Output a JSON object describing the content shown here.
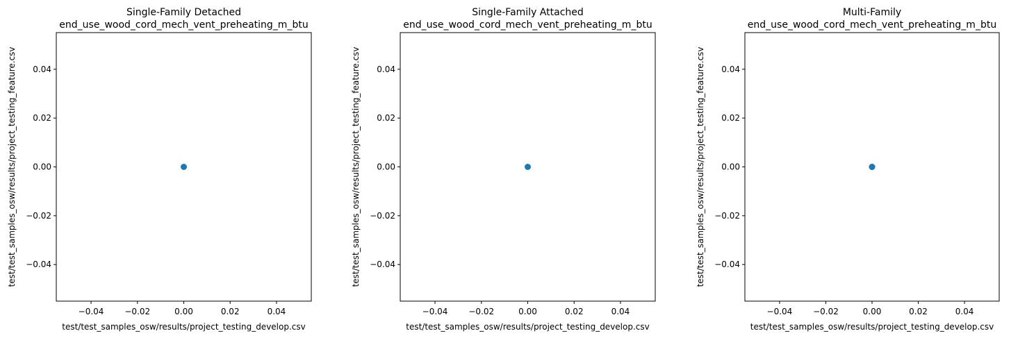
{
  "chart_data": [
    {
      "type": "scatter",
      "title_line1": "Single-Family Detached",
      "title_line2": "end_use_wood_cord_mech_vent_preheating_m_btu",
      "xlabel": "test/test_samples_osw/results/project_testing_develop.csv",
      "ylabel": "test/test_samples_osw/results/project_testing_feature.csv",
      "xlim": [
        -0.055,
        0.055
      ],
      "ylim": [
        -0.055,
        0.055
      ],
      "xticks": [
        -0.04,
        -0.02,
        0.0,
        0.02,
        0.04
      ],
      "yticks": [
        -0.04,
        -0.02,
        0.0,
        0.02,
        0.04
      ],
      "xtick_labels": [
        "−0.04",
        "−0.02",
        "0.00",
        "0.02",
        "0.04"
      ],
      "ytick_labels": [
        "−0.04",
        "−0.02",
        "0.00",
        "0.02",
        "0.04"
      ],
      "points": [
        {
          "x": 0.0,
          "y": 0.0
        }
      ],
      "color": "#1f77b4",
      "grid": false
    },
    {
      "type": "scatter",
      "title_line1": "Single-Family Attached",
      "title_line2": "end_use_wood_cord_mech_vent_preheating_m_btu",
      "xlabel": "test/test_samples_osw/results/project_testing_develop.csv",
      "ylabel": "test/test_samples_osw/results/project_testing_feature.csv",
      "xlim": [
        -0.055,
        0.055
      ],
      "ylim": [
        -0.055,
        0.055
      ],
      "xticks": [
        -0.04,
        -0.02,
        0.0,
        0.02,
        0.04
      ],
      "yticks": [
        -0.04,
        -0.02,
        0.0,
        0.02,
        0.04
      ],
      "xtick_labels": [
        "−0.04",
        "−0.02",
        "0.00",
        "0.02",
        "0.04"
      ],
      "ytick_labels": [
        "−0.04",
        "−0.02",
        "0.00",
        "0.02",
        "0.04"
      ],
      "points": [
        {
          "x": 0.0,
          "y": 0.0
        }
      ],
      "color": "#1f77b4",
      "grid": false
    },
    {
      "type": "scatter",
      "title_line1": "Multi-Family",
      "title_line2": "end_use_wood_cord_mech_vent_preheating_m_btu",
      "xlabel": "test/test_samples_osw/results/project_testing_develop.csv",
      "ylabel": "test/test_samples_osw/results/project_testing_feature.csv",
      "xlim": [
        -0.055,
        0.055
      ],
      "ylim": [
        -0.055,
        0.055
      ],
      "xticks": [
        -0.04,
        -0.02,
        0.0,
        0.02,
        0.04
      ],
      "yticks": [
        -0.04,
        -0.02,
        0.0,
        0.02,
        0.04
      ],
      "xtick_labels": [
        "−0.04",
        "−0.02",
        "0.00",
        "0.02",
        "0.04"
      ],
      "ytick_labels": [
        "−0.04",
        "−0.02",
        "0.00",
        "0.02",
        "0.04"
      ],
      "points": [
        {
          "x": 0.0,
          "y": 0.0
        },
        {
          "x": 0.0,
          "y": 0.0
        }
      ],
      "color": "#1f77b4",
      "grid": false
    }
  ]
}
